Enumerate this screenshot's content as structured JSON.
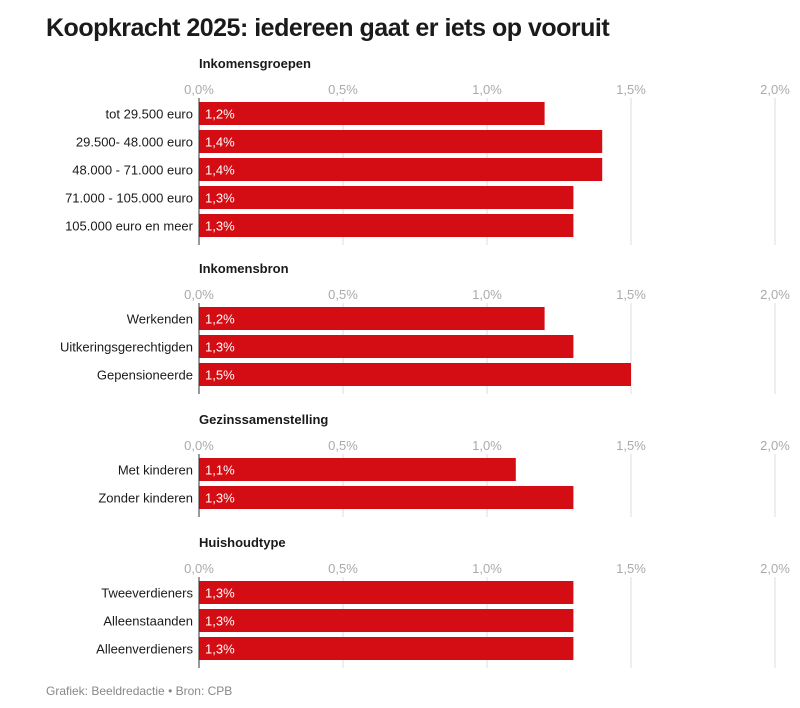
{
  "title": "Koopkracht 2025:  iedereen gaat er iets op vooruit",
  "source": "Grafiek: Beeldredactie • Bron: CPB",
  "colors": {
    "bar": "#d40c14",
    "grid": "#dddddd",
    "axis": "#333333"
  },
  "chart_data": [
    {
      "type": "bar",
      "orientation": "horizontal",
      "title": "Inkomensgroepen",
      "categories": [
        "tot 29.500 euro",
        "29.500- 48.000 euro",
        "48.000 - 71.000 euro",
        "71.000 - 105.000 euro",
        "105.000 euro en meer"
      ],
      "values": [
        1.2,
        1.4,
        1.4,
        1.3,
        1.3
      ],
      "value_labels": [
        "1,2%",
        "1,4%",
        "1,4%",
        "1,3%",
        "1,3%"
      ],
      "xlim": [
        0,
        2
      ],
      "ticks": [
        0,
        0.5,
        1,
        1.5,
        2
      ],
      "tick_labels": [
        "0,0%",
        "0,5%",
        "1,0%",
        "1,5%",
        "2,0%"
      ],
      "grid": true
    },
    {
      "type": "bar",
      "orientation": "horizontal",
      "title": "Inkomensbron",
      "categories": [
        "Werkenden",
        "Uitkeringsgerechtigden",
        "Gepensioneerde"
      ],
      "values": [
        1.2,
        1.3,
        1.5
      ],
      "value_labels": [
        "1,2%",
        "1,3%",
        "1,5%"
      ],
      "xlim": [
        0,
        2
      ],
      "ticks": [
        0,
        0.5,
        1,
        1.5,
        2
      ],
      "tick_labels": [
        "0,0%",
        "0,5%",
        "1,0%",
        "1,5%",
        "2,0%"
      ],
      "grid": true
    },
    {
      "type": "bar",
      "orientation": "horizontal",
      "title": "Gezinssamenstelling",
      "categories": [
        "Met kinderen",
        "Zonder kinderen"
      ],
      "values": [
        1.1,
        1.3
      ],
      "value_labels": [
        "1,1%",
        "1,3%"
      ],
      "xlim": [
        0,
        2
      ],
      "ticks": [
        0,
        0.5,
        1,
        1.5,
        2
      ],
      "tick_labels": [
        "0,0%",
        "0,5%",
        "1,0%",
        "1,5%",
        "2,0%"
      ],
      "grid": true
    },
    {
      "type": "bar",
      "orientation": "horizontal",
      "title": "Huishoudtype",
      "categories": [
        "Tweeverdieners",
        "Alleenstaanden",
        "Alleenverdieners"
      ],
      "values": [
        1.3,
        1.3,
        1.3
      ],
      "value_labels": [
        "1,3%",
        "1,3%",
        "1,3%"
      ],
      "xlim": [
        0,
        2
      ],
      "ticks": [
        0,
        0.5,
        1,
        1.5,
        2
      ],
      "tick_labels": [
        "0,0%",
        "0,5%",
        "1,0%",
        "1,5%",
        "2,0%"
      ],
      "grid": true
    }
  ]
}
